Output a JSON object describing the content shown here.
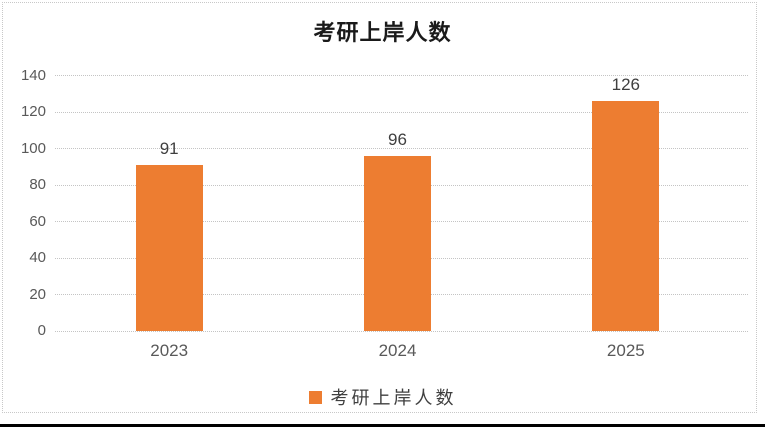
{
  "title": "考研上岸人数",
  "legend": {
    "label": "考研上岸人数"
  },
  "colors": {
    "bar": "#ED7D31",
    "grid": "#C4C4C4",
    "axis_label": "#595959",
    "value_label": "#3F3F3F",
    "title": "#1A1A1A",
    "frame_border": "#C8C8C8",
    "bottom_line": "#000000"
  },
  "chart_data": {
    "type": "bar",
    "title": "考研上岸人数",
    "categories": [
      "2023",
      "2024",
      "2025"
    ],
    "series": [
      {
        "name": "考研上岸人数",
        "values": [
          91,
          96,
          126
        ]
      }
    ],
    "data_labels": [
      91,
      96,
      126
    ],
    "xlabel": "",
    "ylabel": "",
    "ylim": [
      0,
      140
    ],
    "yticks": [
      0,
      20,
      40,
      60,
      80,
      100,
      120,
      140
    ],
    "grid": true,
    "gridline_style": "dotted",
    "legend_position": "bottom",
    "bar_color": "#ED7D31"
  }
}
